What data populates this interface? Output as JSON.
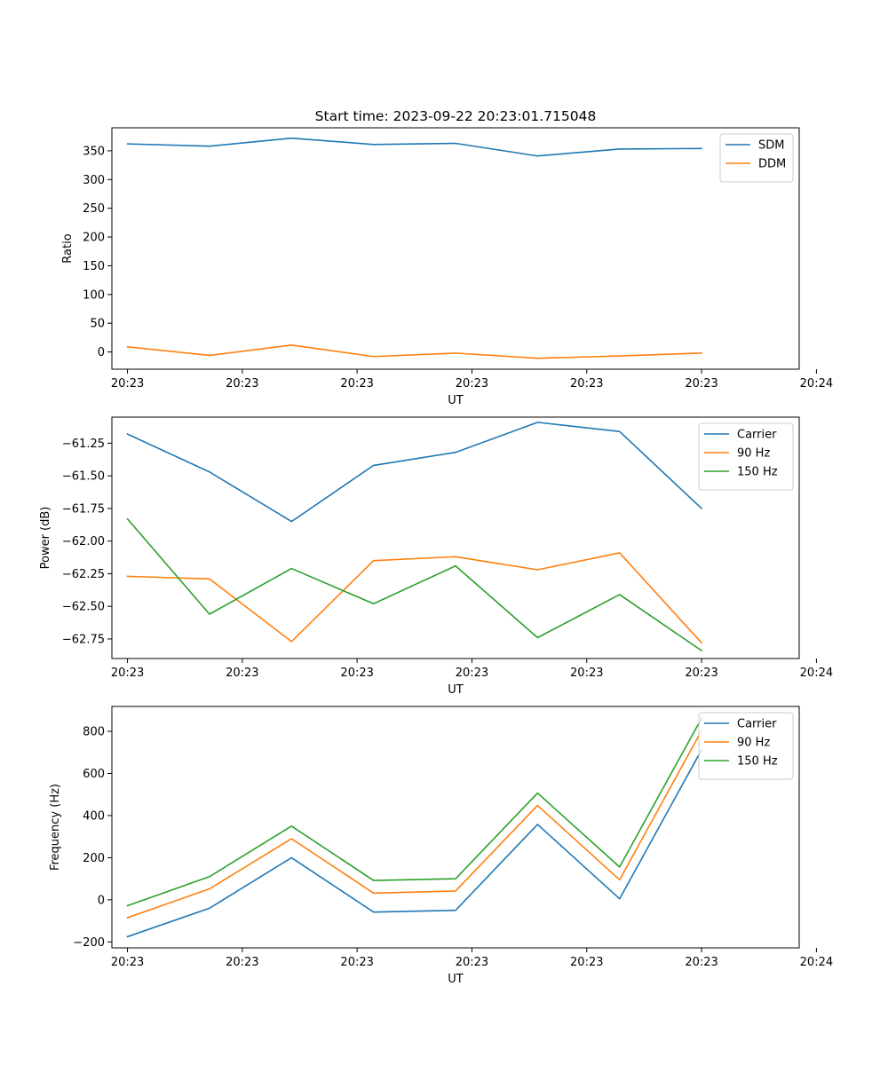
{
  "figure": {
    "title": "Start time: 2023-09-22 20:23:01.715048",
    "colors": {
      "series1": "#1f77b4",
      "series2": "#ff7f0e",
      "series3": "#2ca02c"
    }
  },
  "chart_data": [
    {
      "type": "line",
      "title": "Start time: 2023-09-22 20:23:01.715048",
      "xlabel": "UT",
      "ylabel": "Ratio",
      "x": [
        1,
        2,
        3,
        4,
        5,
        6,
        7,
        8
      ],
      "xlim": [
        0.81,
        9.19
      ],
      "xticks": [
        1,
        2.4,
        3.8,
        5.2,
        6.6,
        8,
        9.4
      ],
      "xtick_labels": [
        "20:23",
        "20:23",
        "20:23",
        "20:23",
        "20:23",
        "20:23",
        "20:24"
      ],
      "ylim": [
        -30,
        390
      ],
      "yticks": [
        0,
        50,
        100,
        150,
        200,
        250,
        300,
        350
      ],
      "ytick_labels": [
        "0",
        "50",
        "100",
        "150",
        "200",
        "250",
        "300",
        "350"
      ],
      "legend_position": "top-right",
      "series": [
        {
          "name": "SDM",
          "color": "#1f77b4",
          "values": [
            362,
            358,
            372,
            361,
            363,
            341,
            353,
            354
          ]
        },
        {
          "name": "DDM",
          "color": "#ff7f0e",
          "values": [
            9,
            -6,
            12,
            -8,
            -2,
            -11,
            -7,
            -2
          ]
        }
      ]
    },
    {
      "type": "line",
      "title": "",
      "xlabel": "UT",
      "ylabel": "Power (dB)",
      "x": [
        1,
        2,
        3,
        4,
        5,
        6,
        7,
        8
      ],
      "xlim": [
        0.81,
        9.19
      ],
      "xticks": [
        1,
        2.4,
        3.8,
        5.2,
        6.6,
        8,
        9.4
      ],
      "xtick_labels": [
        "20:23",
        "20:23",
        "20:23",
        "20:23",
        "20:23",
        "20:23",
        "20:24"
      ],
      "ylim": [
        -62.9,
        -61.05
      ],
      "yticks": [
        -62.75,
        -62.5,
        -62.25,
        -62.0,
        -61.75,
        -61.5,
        -61.25
      ],
      "ytick_labels": [
        "−62.75",
        "−62.50",
        "−62.25",
        "−62.00",
        "−61.75",
        "−61.50",
        "−61.25"
      ],
      "legend_position": "top-right",
      "series": [
        {
          "name": "Carrier",
          "color": "#1f77b4",
          "values": [
            -61.18,
            -61.47,
            -61.85,
            -61.42,
            -61.32,
            -61.09,
            -61.16,
            -61.75
          ]
        },
        {
          "name": "90 Hz",
          "color": "#ff7f0e",
          "values": [
            -62.27,
            -62.29,
            -62.77,
            -62.15,
            -62.12,
            -62.22,
            -62.09,
            -62.78
          ]
        },
        {
          "name": "150 Hz",
          "color": "#2ca02c",
          "values": [
            -61.83,
            -62.56,
            -62.21,
            -62.48,
            -62.19,
            -62.74,
            -62.41,
            -62.84
          ]
        }
      ]
    },
    {
      "type": "line",
      "title": "",
      "xlabel": "UT",
      "ylabel": "Frequency (Hz)",
      "x": [
        1,
        2,
        3,
        4,
        5,
        6,
        7,
        8
      ],
      "xlim": [
        0.81,
        9.19
      ],
      "xticks": [
        1,
        2.4,
        3.8,
        5.2,
        6.6,
        8,
        9.4
      ],
      "xtick_labels": [
        "20:23",
        "20:23",
        "20:23",
        "20:23",
        "20:23",
        "20:23",
        "20:24"
      ],
      "ylim": [
        -228,
        918
      ],
      "yticks": [
        -200,
        0,
        200,
        400,
        600,
        800
      ],
      "ytick_labels": [
        "−200",
        "0",
        "200",
        "400",
        "600",
        "800"
      ],
      "legend_position": "top-right",
      "series": [
        {
          "name": "Carrier",
          "color": "#1f77b4",
          "values": [
            -175,
            -40,
            200,
            -58,
            -50,
            358,
            5,
            712
          ]
        },
        {
          "name": "90 Hz",
          "color": "#ff7f0e",
          "values": [
            -85,
            52,
            290,
            32,
            42,
            448,
            95,
            803
          ]
        },
        {
          "name": "150 Hz",
          "color": "#2ca02c",
          "values": [
            -28,
            110,
            350,
            92,
            100,
            507,
            156,
            862
          ]
        }
      ]
    }
  ]
}
